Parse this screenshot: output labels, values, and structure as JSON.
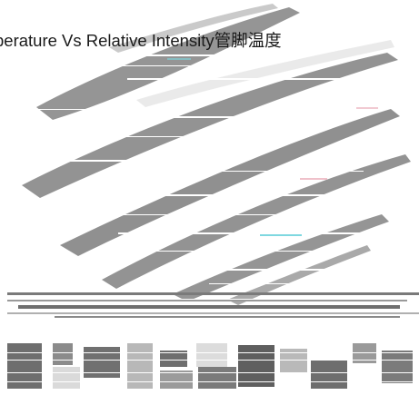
{
  "caption": {
    "text": "perature Vs Relative Intensity管脚温度"
  },
  "colors": {
    "streak_fill": "#8a8a8a",
    "streak_highlight": "#ececec",
    "accent_cyan": "#7fd8e0",
    "accent_pink": "#e8a6b4",
    "glitch_dark": "#6e6e6e",
    "glitch_light": "#dadada"
  }
}
